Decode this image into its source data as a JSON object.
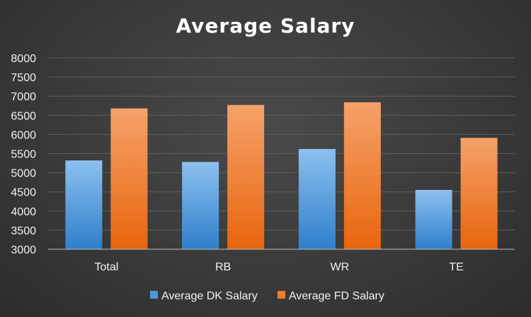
{
  "chart_data": {
    "type": "bar",
    "title": "Average Salary",
    "categories": [
      "Total",
      "RB",
      "WR",
      "TE"
    ],
    "series": [
      {
        "name": "Average DK Salary",
        "values": [
          5320,
          5280,
          5620,
          4550
        ],
        "color": "#4d97dc"
      },
      {
        "name": "Average FD Salary",
        "values": [
          6680,
          6770,
          6840,
          5910
        ],
        "color": "#ef7c2c"
      }
    ],
    "ylim": [
      3000,
      8000
    ],
    "yticks": [
      3000,
      3500,
      4000,
      4500,
      5000,
      5500,
      6000,
      6500,
      7000,
      7500,
      8000
    ],
    "xlabel": "",
    "ylabel": "",
    "grid": true,
    "legend": "bottom"
  }
}
